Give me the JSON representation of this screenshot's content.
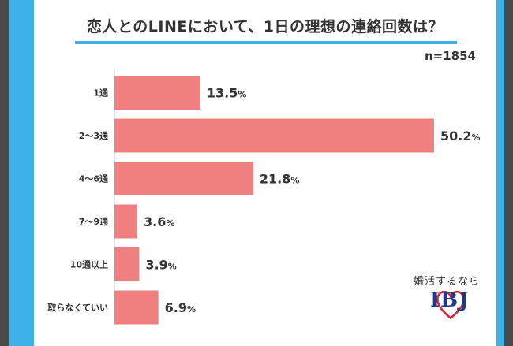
{
  "title": "恋人とのLINEにおいて、1日の理想の連絡回数は？",
  "sample_size": "n=1854",
  "colors": {
    "bar": "#f08080",
    "accent": "#3eb1e8",
    "logo": "#1d3a8a",
    "heart": "#d7263d"
  },
  "logo": {
    "tagline": "婚活するなら",
    "wordmark": "IBJ",
    "icon": "heart-icon"
  },
  "chart_data": {
    "type": "bar",
    "orientation": "horizontal",
    "categories": [
      "1通",
      "2～3通",
      "4～6通",
      "7～9通",
      "10通以上",
      "取らなくていい"
    ],
    "values": [
      13.5,
      50.2,
      21.8,
      3.6,
      3.9,
      6.9
    ],
    "value_labels": [
      "13.5%",
      "50.2%",
      "21.8%",
      "3.6%",
      "3.9%",
      "6.9%"
    ],
    "unit": "%",
    "title": "恋人とのLINEにおいて、1日の理想の連絡回数は？",
    "xlabel": "",
    "ylabel": "",
    "xlim": [
      0,
      50.2
    ],
    "grid": false,
    "legend": "none"
  }
}
